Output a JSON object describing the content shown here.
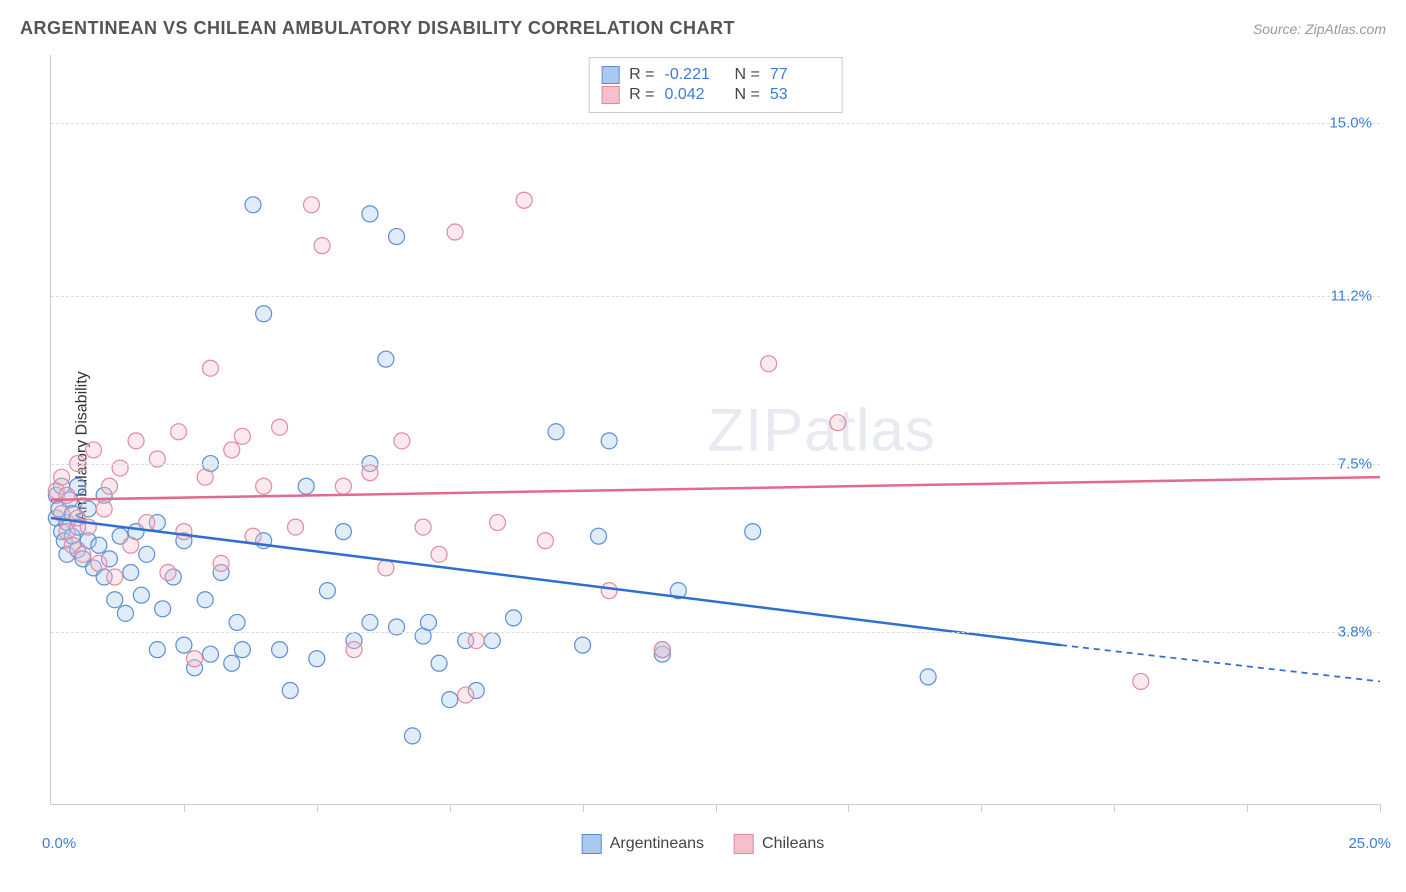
{
  "header": {
    "title": "ARGENTINEAN VS CHILEAN AMBULATORY DISABILITY CORRELATION CHART",
    "source_label": "Source: ",
    "source_name": "ZipAtlas.com"
  },
  "chart": {
    "type": "scatter",
    "ylabel": "Ambulatory Disability",
    "xlim": [
      0,
      25
    ],
    "ylim": [
      0,
      16.5
    ],
    "x_ticks": [
      0,
      2.5,
      5,
      7.5,
      10,
      12.5,
      15,
      17.5,
      20,
      22.5,
      25
    ],
    "x_origin_label": "0.0%",
    "x_max_label": "25.0%",
    "y_gridlines": [
      3.8,
      7.5,
      11.2,
      15.0
    ],
    "y_tick_labels": [
      "3.8%",
      "7.5%",
      "11.2%",
      "15.0%"
    ],
    "background_color": "#ffffff",
    "grid_color": "#dddddd",
    "axis_color": "#cccccc",
    "label_fontsize": 16,
    "tick_label_color": "#3b7dd8",
    "marker_radius": 8,
    "marker_fill_opacity": 0.35,
    "marker_stroke_width": 1.2,
    "trend_line_width": 2.5,
    "watermark_text_a": "ZIP",
    "watermark_text_b": "atlas",
    "stats": [
      {
        "r_label": "R = ",
        "r_value": "-0.221",
        "n_label": "N = ",
        "n_value": "77",
        "swatch_fill": "#a9c9ee",
        "swatch_border": "#5b8fd6"
      },
      {
        "r_label": "R = ",
        "r_value": "0.042",
        "n_label": "N = ",
        "n_value": "53",
        "swatch_fill": "#f5c0cb",
        "swatch_border": "#e48aa0"
      }
    ],
    "legend": [
      {
        "label": "Argentineans",
        "swatch_fill": "#a9c9ee",
        "swatch_border": "#5b8fd6"
      },
      {
        "label": "Chileans",
        "swatch_fill": "#f5c0cb",
        "swatch_border": "#e48aa0"
      }
    ],
    "series": [
      {
        "name": "Argentineans",
        "fill": "#a9c9ee",
        "stroke": "#5b8fd6",
        "trend": {
          "x1": 0,
          "y1": 6.3,
          "x2": 19,
          "y2": 3.5,
          "x3": 25,
          "y3": 2.7,
          "color": "#2f6fd0",
          "dash_from_x": 19
        },
        "points": [
          [
            0.1,
            6.8
          ],
          [
            0.1,
            6.3
          ],
          [
            0.15,
            6.5
          ],
          [
            0.2,
            6.0
          ],
          [
            0.2,
            7.0
          ],
          [
            0.25,
            5.8
          ],
          [
            0.3,
            6.2
          ],
          [
            0.3,
            5.5
          ],
          [
            0.35,
            6.7
          ],
          [
            0.4,
            5.9
          ],
          [
            0.4,
            6.4
          ],
          [
            0.5,
            5.6
          ],
          [
            0.5,
            6.1
          ],
          [
            0.5,
            7.0
          ],
          [
            0.6,
            5.4
          ],
          [
            0.7,
            5.8
          ],
          [
            0.7,
            6.5
          ],
          [
            0.8,
            5.2
          ],
          [
            0.9,
            5.7
          ],
          [
            1.0,
            5.0
          ],
          [
            1.0,
            6.8
          ],
          [
            1.1,
            5.4
          ],
          [
            1.2,
            4.5
          ],
          [
            1.3,
            5.9
          ],
          [
            1.4,
            4.2
          ],
          [
            1.5,
            5.1
          ],
          [
            1.6,
            6.0
          ],
          [
            1.7,
            4.6
          ],
          [
            1.8,
            5.5
          ],
          [
            2.0,
            3.4
          ],
          [
            2.0,
            6.2
          ],
          [
            2.1,
            4.3
          ],
          [
            2.3,
            5.0
          ],
          [
            2.5,
            3.5
          ],
          [
            2.5,
            5.8
          ],
          [
            2.7,
            3.0
          ],
          [
            2.9,
            4.5
          ],
          [
            3.0,
            3.3
          ],
          [
            3.0,
            7.5
          ],
          [
            3.2,
            5.1
          ],
          [
            3.4,
            3.1
          ],
          [
            3.5,
            4.0
          ],
          [
            3.6,
            3.4
          ],
          [
            3.8,
            13.2
          ],
          [
            4.0,
            5.8
          ],
          [
            4.0,
            10.8
          ],
          [
            4.3,
            3.4
          ],
          [
            4.5,
            2.5
          ],
          [
            4.8,
            7.0
          ],
          [
            5.0,
            3.2
          ],
          [
            5.2,
            4.7
          ],
          [
            5.5,
            6.0
          ],
          [
            5.7,
            3.6
          ],
          [
            6.0,
            7.5
          ],
          [
            6.0,
            4.0
          ],
          [
            6.3,
            9.8
          ],
          [
            6.5,
            12.5
          ],
          [
            6.5,
            3.9
          ],
          [
            6.8,
            1.5
          ],
          [
            7.0,
            3.7
          ],
          [
            7.1,
            4.0
          ],
          [
            7.3,
            3.1
          ],
          [
            7.5,
            2.3
          ],
          [
            7.8,
            3.6
          ],
          [
            8.0,
            2.5
          ],
          [
            8.3,
            3.6
          ],
          [
            8.7,
            4.1
          ],
          [
            9.5,
            8.2
          ],
          [
            10.0,
            3.5
          ],
          [
            10.3,
            5.9
          ],
          [
            10.5,
            8.0
          ],
          [
            11.5,
            3.3
          ],
          [
            11.5,
            3.4
          ],
          [
            11.8,
            4.7
          ],
          [
            16.5,
            2.8
          ],
          [
            13.2,
            6.0
          ],
          [
            6.0,
            13.0
          ]
        ]
      },
      {
        "name": "Chileans",
        "fill": "#f5c0cb",
        "stroke": "#e48aa0",
        "trend": {
          "x1": 0,
          "y1": 6.7,
          "x2": 25,
          "y2": 7.2,
          "color": "#e16b89"
        },
        "points": [
          [
            0.1,
            6.9
          ],
          [
            0.2,
            6.4
          ],
          [
            0.2,
            7.2
          ],
          [
            0.3,
            6.0
          ],
          [
            0.3,
            6.8
          ],
          [
            0.4,
            5.7
          ],
          [
            0.5,
            6.3
          ],
          [
            0.5,
            7.5
          ],
          [
            0.6,
            5.5
          ],
          [
            0.7,
            6.1
          ],
          [
            0.8,
            7.8
          ],
          [
            0.9,
            5.3
          ],
          [
            1.0,
            6.5
          ],
          [
            1.1,
            7.0
          ],
          [
            1.2,
            5.0
          ],
          [
            1.3,
            7.4
          ],
          [
            1.5,
            5.7
          ],
          [
            1.6,
            8.0
          ],
          [
            1.8,
            6.2
          ],
          [
            2.0,
            7.6
          ],
          [
            2.2,
            5.1
          ],
          [
            2.4,
            8.2
          ],
          [
            2.5,
            6.0
          ],
          [
            2.7,
            3.2
          ],
          [
            2.9,
            7.2
          ],
          [
            3.0,
            9.6
          ],
          [
            3.2,
            5.3
          ],
          [
            3.4,
            7.8
          ],
          [
            3.6,
            8.1
          ],
          [
            3.8,
            5.9
          ],
          [
            4.0,
            7.0
          ],
          [
            4.3,
            8.3
          ],
          [
            4.6,
            6.1
          ],
          [
            4.9,
            13.2
          ],
          [
            5.1,
            12.3
          ],
          [
            5.5,
            7.0
          ],
          [
            5.7,
            3.4
          ],
          [
            6.0,
            7.3
          ],
          [
            6.3,
            5.2
          ],
          [
            6.6,
            8.0
          ],
          [
            7.0,
            6.1
          ],
          [
            7.3,
            5.5
          ],
          [
            7.6,
            12.6
          ],
          [
            8.0,
            3.6
          ],
          [
            8.4,
            6.2
          ],
          [
            8.9,
            13.3
          ],
          [
            9.3,
            5.8
          ],
          [
            10.5,
            4.7
          ],
          [
            11.5,
            3.4
          ],
          [
            13.5,
            9.7
          ],
          [
            14.8,
            8.4
          ],
          [
            20.5,
            2.7
          ],
          [
            7.8,
            2.4
          ]
        ]
      }
    ]
  }
}
